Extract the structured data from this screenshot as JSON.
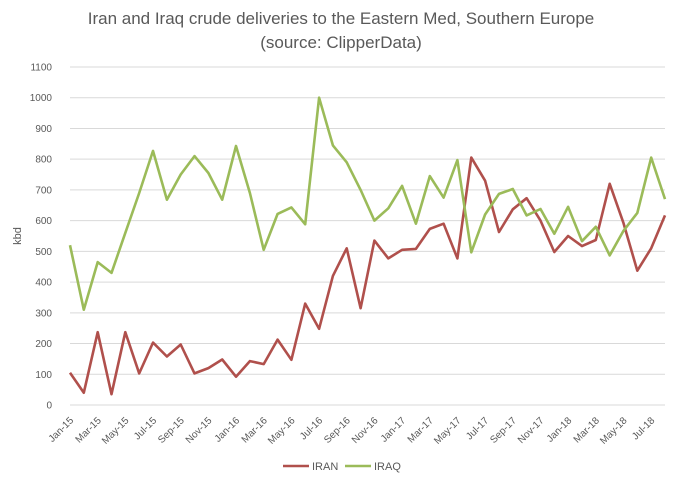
{
  "chart_data": {
    "type": "line",
    "title_lines": [
      "Iran and Iraq crude deliveries to the Eastern Med, Southern Europe",
      "(source: ClipperData)"
    ],
    "ylabel": "kbd",
    "xlabel": "",
    "ylim": [
      0,
      1100
    ],
    "yticks": [
      0,
      100,
      200,
      300,
      400,
      500,
      600,
      700,
      800,
      900,
      1000,
      1100
    ],
    "grid": true,
    "legend_position": "bottom",
    "x": [
      "Jan-15",
      "Feb-15",
      "Mar-15",
      "Apr-15",
      "May-15",
      "Jun-15",
      "Jul-15",
      "Aug-15",
      "Sep-15",
      "Oct-15",
      "Nov-15",
      "Dec-15",
      "Jan-16",
      "Feb-16",
      "Mar-16",
      "Apr-16",
      "May-16",
      "Jun-16",
      "Jul-16",
      "Aug-16",
      "Sep-16",
      "Oct-16",
      "Nov-16",
      "Dec-16",
      "Jan-17",
      "Feb-17",
      "Mar-17",
      "Apr-17",
      "May-17",
      "Jun-17",
      "Jul-17",
      "Aug-17",
      "Sep-17",
      "Oct-17",
      "Nov-17",
      "Dec-17",
      "Jan-18",
      "Feb-18",
      "Mar-18",
      "Apr-18",
      "May-18",
      "Jun-18",
      "Jul-18",
      "Aug-18"
    ],
    "x_tick_labels": [
      "Jan-15",
      "Mar-15",
      "May-15",
      "Jul-15",
      "Sep-15",
      "Nov-15",
      "Jan-16",
      "Mar-16",
      "May-16",
      "Jul-16",
      "Sep-16",
      "Nov-16",
      "Jan-17",
      "Mar-17",
      "May-17",
      "Jul-17",
      "Sep-17",
      "Nov-17",
      "Jan-18",
      "Mar-18",
      "May-18",
      "Jul-18"
    ],
    "series": [
      {
        "name": "IRAN",
        "color": "#b0504c",
        "values": [
          105,
          40,
          237,
          35,
          237,
          103,
          203,
          158,
          197,
          103,
          120,
          148,
          92,
          143,
          133,
          213,
          147,
          330,
          248,
          420,
          510,
          315,
          535,
          477,
          505,
          508,
          573,
          590,
          477,
          805,
          730,
          563,
          637,
          673,
          600,
          498,
          550,
          517,
          537,
          720,
          592,
          437,
          510,
          617
        ]
      },
      {
        "name": "IRAQ",
        "color": "#9bbb59",
        "values": [
          520,
          310,
          465,
          430,
          560,
          690,
          827,
          668,
          750,
          810,
          755,
          668,
          843,
          690,
          505,
          622,
          643,
          588,
          1000,
          845,
          790,
          700,
          600,
          640,
          713,
          590,
          745,
          675,
          797,
          497,
          620,
          687,
          703,
          617,
          638,
          557,
          645,
          533,
          580,
          487,
          567,
          625,
          805,
          670
        ]
      }
    ]
  }
}
